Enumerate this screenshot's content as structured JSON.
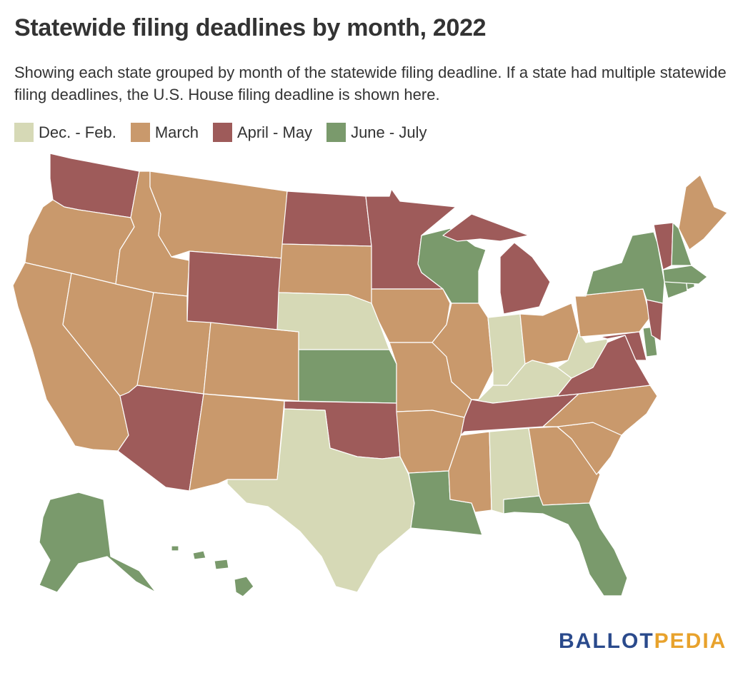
{
  "title": "Statewide filing deadlines by month, 2022",
  "subtitle": "Showing each state grouped by month of the statewide filing deadline. If a state had multiple statewide filing deadlines, the U.S. House filing deadline is shown here.",
  "legend": [
    {
      "key": "decfeb",
      "label": "Dec. - Feb.",
      "color": "#d6d9b6"
    },
    {
      "key": "march",
      "label": "March",
      "color": "#c9996c"
    },
    {
      "key": "aprmay",
      "label": "April - May",
      "color": "#9e5b5a"
    },
    {
      "key": "junjul",
      "label": "June - July",
      "color": "#7a9a6c"
    }
  ],
  "map_data": {
    "type": "choropleth",
    "states": {
      "WA": "aprmay",
      "OR": "march",
      "CA": "march",
      "NV": "march",
      "ID": "march",
      "MT": "march",
      "WY": "aprmay",
      "UT": "march",
      "AZ": "aprmay",
      "CO": "march",
      "NM": "march",
      "ND": "aprmay",
      "SD": "march",
      "NE": "decfeb",
      "KS": "junjul",
      "OK": "aprmay",
      "TX": "decfeb",
      "MN": "aprmay",
      "IA": "march",
      "MO": "march",
      "AR": "march",
      "LA": "junjul",
      "WI": "junjul",
      "IL": "march",
      "MI": "aprmay",
      "IN": "decfeb",
      "OH": "march",
      "KY": "decfeb",
      "TN": "aprmay",
      "MS": "march",
      "AL": "decfeb",
      "GA": "march",
      "FL": "junjul",
      "SC": "march",
      "NC": "march",
      "VA": "aprmay",
      "WV": "decfeb",
      "PA": "march",
      "NY": "junjul",
      "VT": "aprmay",
      "NH": "junjul",
      "ME": "march",
      "MA": "junjul",
      "CT": "junjul",
      "RI": "junjul",
      "NJ": "aprmay",
      "DE": "junjul",
      "MD": "aprmay",
      "AK": "junjul",
      "HI": "junjul"
    }
  },
  "logo": {
    "part1": "BALLOT",
    "part2": "PEDIA"
  }
}
